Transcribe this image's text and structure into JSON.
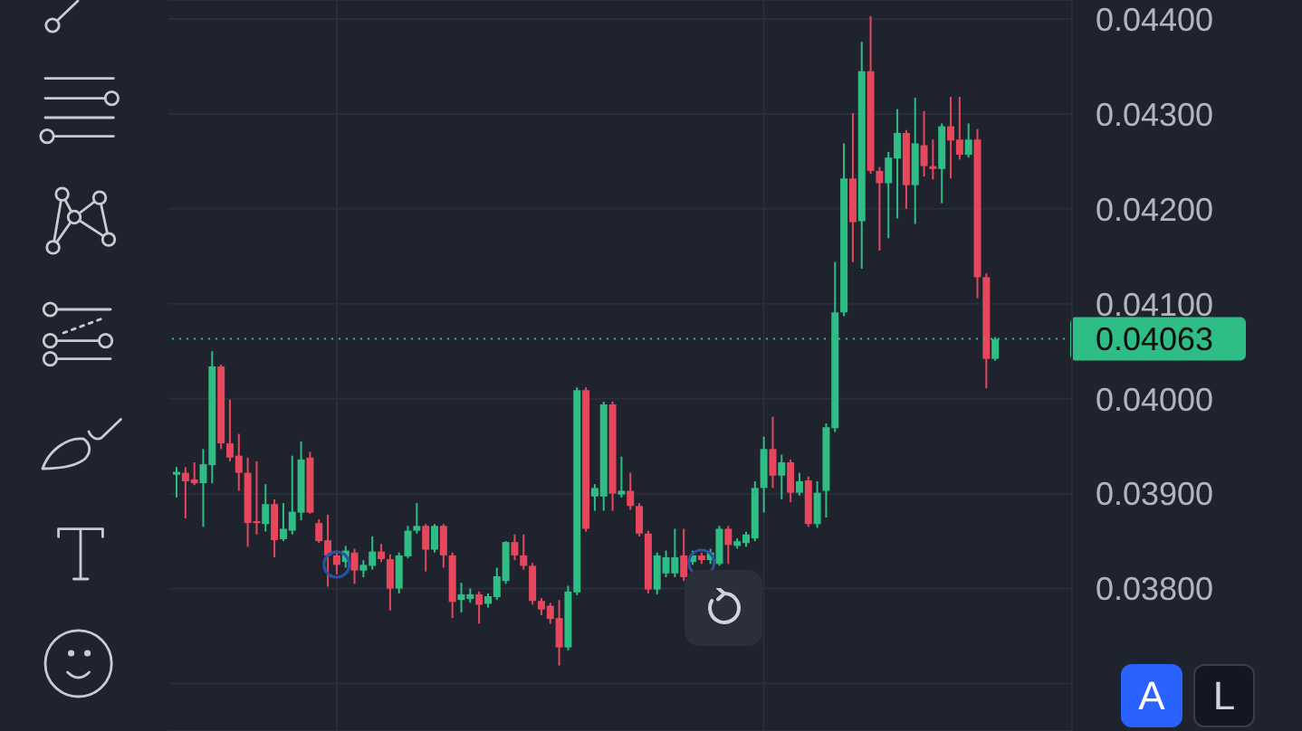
{
  "chart_data": {
    "type": "candlestick",
    "categories": [
      null,
      null,
      null,
      null,
      null,
      null,
      null,
      null,
      null,
      null,
      null,
      null,
      null,
      null,
      null,
      null,
      null,
      null,
      null,
      null,
      null,
      null,
      null,
      null,
      null,
      null,
      null,
      null,
      null,
      null,
      null,
      null,
      null,
      null,
      null,
      null,
      null,
      null,
      null,
      null,
      null,
      null,
      null,
      null,
      null,
      null,
      null,
      null,
      null,
      null,
      null,
      null,
      null,
      null,
      null,
      null,
      null,
      null,
      null,
      null,
      null,
      null,
      null,
      null,
      null,
      null,
      null,
      null,
      null,
      null,
      null,
      null,
      null,
      null,
      null,
      null,
      null,
      null,
      null,
      null,
      null,
      null,
      null,
      null,
      null,
      null,
      null,
      null,
      null,
      null,
      null,
      null,
      null
    ],
    "ohlc": [
      [
        0.0392,
        0.03928,
        0.03896,
        0.03923
      ],
      [
        0.03922,
        0.03928,
        0.03874,
        0.03913
      ],
      [
        0.03915,
        0.03933,
        0.03909,
        0.03911
      ],
      [
        0.03911,
        0.03947,
        0.03865,
        0.03931
      ],
      [
        0.0393,
        0.0405,
        0.03911,
        0.04034
      ],
      [
        0.04034,
        0.04036,
        0.03947,
        0.03953
      ],
      [
        0.03953,
        0.03999,
        0.03934,
        0.03938
      ],
      [
        0.0394,
        0.03963,
        0.03903,
        0.03922
      ],
      [
        0.03922,
        0.03938,
        0.03844,
        0.03869
      ],
      [
        0.03871,
        0.03934,
        0.03857,
        0.03869
      ],
      [
        0.03868,
        0.0391,
        0.0386,
        0.03889
      ],
      [
        0.03889,
        0.03894,
        0.03833,
        0.03851
      ],
      [
        0.03852,
        0.0389,
        0.0385,
        0.03863
      ],
      [
        0.03861,
        0.0394,
        0.03857,
        0.03881
      ],
      [
        0.0388,
        0.03955,
        0.03872,
        0.03936
      ],
      [
        0.03938,
        0.03944,
        0.03879,
        0.0388
      ],
      [
        0.03869,
        0.03873,
        0.03848,
        0.0385
      ],
      [
        0.03851,
        0.03878,
        0.03802,
        0.03835
      ],
      [
        0.03835,
        0.0384,
        0.03815,
        0.03825
      ],
      [
        0.03828,
        0.03845,
        0.03822,
        0.0384
      ],
      [
        0.03838,
        0.03842,
        0.03805,
        0.03819
      ],
      [
        0.03819,
        0.0383,
        0.03812,
        0.03825
      ],
      [
        0.03824,
        0.03855,
        0.0382,
        0.03839
      ],
      [
        0.03839,
        0.03847,
        0.03828,
        0.03831
      ],
      [
        0.03831,
        0.03836,
        0.03777,
        0.038
      ],
      [
        0.038,
        0.03838,
        0.03795,
        0.03835
      ],
      [
        0.03834,
        0.03866,
        0.03832,
        0.03861
      ],
      [
        0.03861,
        0.0389,
        0.03858,
        0.03866
      ],
      [
        0.03866,
        0.03868,
        0.03818,
        0.03841
      ],
      [
        0.03841,
        0.03868,
        0.03838,
        0.03866
      ],
      [
        0.03866,
        0.03868,
        0.03822,
        0.03835
      ],
      [
        0.03835,
        0.03838,
        0.03769,
        0.03786
      ],
      [
        0.03788,
        0.03806,
        0.03775,
        0.03794
      ],
      [
        0.03789,
        0.038,
        0.03785,
        0.03794
      ],
      [
        0.03794,
        0.03797,
        0.03763,
        0.03783
      ],
      [
        0.03784,
        0.03795,
        0.0378,
        0.03792
      ],
      [
        0.03791,
        0.03822,
        0.03788,
        0.03813
      ],
      [
        0.03808,
        0.0385,
        0.03805,
        0.03849
      ],
      [
        0.03849,
        0.03857,
        0.0383,
        0.03835
      ],
      [
        0.03835,
        0.03857,
        0.0382,
        0.03824
      ],
      [
        0.03824,
        0.03827,
        0.03783,
        0.03787
      ],
      [
        0.03787,
        0.0379,
        0.03772,
        0.03778
      ],
      [
        0.03782,
        0.03785,
        0.03763,
        0.03768
      ],
      [
        0.03769,
        0.03788,
        0.03719,
        0.03738
      ],
      [
        0.03738,
        0.03803,
        0.03735,
        0.03797
      ],
      [
        0.03796,
        0.04012,
        0.03793,
        0.04009
      ],
      [
        0.04009,
        0.04012,
        0.0386,
        0.03863
      ],
      [
        0.03897,
        0.0391,
        0.03882,
        0.03906
      ],
      [
        0.03897,
        0.03997,
        0.03882,
        0.03994
      ],
      [
        0.03994,
        0.03997,
        0.03882,
        0.039
      ],
      [
        0.03899,
        0.03939,
        0.03896,
        0.03903
      ],
      [
        0.03903,
        0.03922,
        0.03883,
        0.03887
      ],
      [
        0.03887,
        0.0389,
        0.03855,
        0.03858
      ],
      [
        0.03858,
        0.03861,
        0.03795,
        0.03799
      ],
      [
        0.03799,
        0.03838,
        0.03794,
        0.03835
      ],
      [
        0.03816,
        0.0384,
        0.03812,
        0.03833
      ],
      [
        0.03816,
        0.03863,
        0.03812,
        0.03833
      ],
      [
        0.03835,
        0.03863,
        0.03808,
        0.03812
      ],
      [
        0.03828,
        0.0384,
        0.03825,
        0.03835
      ],
      [
        0.03835,
        0.03838,
        0.03826,
        0.0383
      ],
      [
        0.0383,
        0.03842,
        0.03826,
        0.03838
      ],
      [
        0.03826,
        0.03866,
        0.03824,
        0.03863
      ],
      [
        0.03863,
        0.03866,
        0.03826,
        0.03846
      ],
      [
        0.03845,
        0.03853,
        0.03842,
        0.0385
      ],
      [
        0.03848,
        0.0386,
        0.03844,
        0.03857
      ],
      [
        0.03853,
        0.03913,
        0.0385,
        0.03906
      ],
      [
        0.03906,
        0.0396,
        0.0388,
        0.03947
      ],
      [
        0.03947,
        0.03981,
        0.03906,
        0.03919
      ],
      [
        0.03919,
        0.03941,
        0.03894,
        0.03933
      ],
      [
        0.03933,
        0.03936,
        0.03891,
        0.03901
      ],
      [
        0.03901,
        0.03922,
        0.03898,
        0.03913
      ],
      [
        0.03914,
        0.03918,
        0.03865,
        0.03868
      ],
      [
        0.03868,
        0.03913,
        0.03864,
        0.03901
      ],
      [
        0.03903,
        0.03974,
        0.03875,
        0.0397
      ],
      [
        0.03969,
        0.04144,
        0.03965,
        0.04091
      ],
      [
        0.04091,
        0.04269,
        0.04087,
        0.04232
      ],
      [
        0.04232,
        0.04301,
        0.04144,
        0.04186
      ],
      [
        0.04187,
        0.04376,
        0.04137,
        0.04345
      ],
      [
        0.04345,
        0.04403,
        0.04237,
        0.0424
      ],
      [
        0.0424,
        0.04244,
        0.04156,
        0.04227
      ],
      [
        0.04227,
        0.0426,
        0.04169,
        0.04254
      ],
      [
        0.04253,
        0.04305,
        0.0419,
        0.0428
      ],
      [
        0.0428,
        0.04283,
        0.042,
        0.04225
      ],
      [
        0.04225,
        0.04317,
        0.04184,
        0.04269
      ],
      [
        0.04267,
        0.04303,
        0.04234,
        0.04245
      ],
      [
        0.04245,
        0.04273,
        0.04231,
        0.04242
      ],
      [
        0.04242,
        0.0429,
        0.04206,
        0.04287
      ],
      [
        0.04287,
        0.04318,
        0.04232,
        0.04272
      ],
      [
        0.04273,
        0.04318,
        0.04252,
        0.04257
      ],
      [
        0.04257,
        0.0429,
        0.04254,
        0.04273
      ],
      [
        0.04273,
        0.04284,
        0.04106,
        0.04128
      ],
      [
        0.04128,
        0.04132,
        0.04011,
        0.04042
      ],
      [
        0.04042,
        0.04065,
        0.0404,
        0.04063
      ]
    ],
    "colors": [
      "#2ebd85",
      "#e6475d",
      "#e6475d",
      "#2ebd85",
      "#2ebd85",
      "#e6475d",
      "#e6475d",
      "#e6475d",
      "#e6475d",
      "#e6475d",
      "#2ebd85",
      "#e6475d",
      "#2ebd85",
      "#2ebd85",
      "#2ebd85",
      "#e6475d",
      "#e6475d",
      "#e6475d",
      "#e6475d",
      "#2ebd85",
      "#e6475d",
      "#2ebd85",
      "#2ebd85",
      "#e6475d",
      "#e6475d",
      "#2ebd85",
      "#2ebd85",
      "#2ebd85",
      "#e6475d",
      "#2ebd85",
      "#e6475d",
      "#e6475d",
      "#2ebd85",
      "#2ebd85",
      "#e6475d",
      "#2ebd85",
      "#2ebd85",
      "#2ebd85",
      "#e6475d",
      "#e6475d",
      "#e6475d",
      "#e6475d",
      "#e6475d",
      "#e6475d",
      "#2ebd85",
      "#2ebd85",
      "#e6475d",
      "#2ebd85",
      "#2ebd85",
      "#e6475d",
      "#2ebd85",
      "#e6475d",
      "#e6475d",
      "#e6475d",
      "#2ebd85",
      "#2ebd85",
      "#2ebd85",
      "#e6475d",
      "#2ebd85",
      "#e6475d",
      "#2ebd85",
      "#2ebd85",
      "#e6475d",
      "#2ebd85",
      "#2ebd85",
      "#2ebd85",
      "#2ebd85",
      "#e6475d",
      "#2ebd85",
      "#e6475d",
      "#2ebd85",
      "#e6475d",
      "#2ebd85",
      "#2ebd85",
      "#2ebd85",
      "#2ebd85",
      "#e6475d",
      "#2ebd85",
      "#e6475d",
      "#e6475d",
      "#2ebd85",
      "#2ebd85",
      "#e6475d",
      "#2ebd85",
      "#e6475d",
      "#e6475d",
      "#2ebd85",
      "#e6475d",
      "#e6475d",
      "#2ebd85",
      "#e6475d",
      "#e6475d",
      "#2ebd85"
    ],
    "ylim": [
      0.0365,
      0.0442
    ],
    "yticks": [
      {
        "value": 0.037,
        "label": null
      },
      {
        "value": 0.038,
        "label": "0.03800"
      },
      {
        "value": 0.039,
        "label": "0.03900"
      },
      {
        "value": 0.04,
        "label": "0.04000"
      },
      {
        "value": 0.041,
        "label": "0.04100"
      },
      {
        "value": 0.042,
        "label": "0.04200"
      },
      {
        "value": 0.043,
        "label": "0.04300"
      },
      {
        "value": 0.044,
        "label": "0.04400"
      }
    ],
    "grid": true,
    "tick_labels": "y",
    "ref_lines": [
      {
        "axis": "y",
        "value": 0.04063,
        "label": "0.04063",
        "color": "#2ebd85",
        "line_style": "dotted"
      }
    ],
    "annotations": [
      "A",
      "L"
    ]
  }
}
